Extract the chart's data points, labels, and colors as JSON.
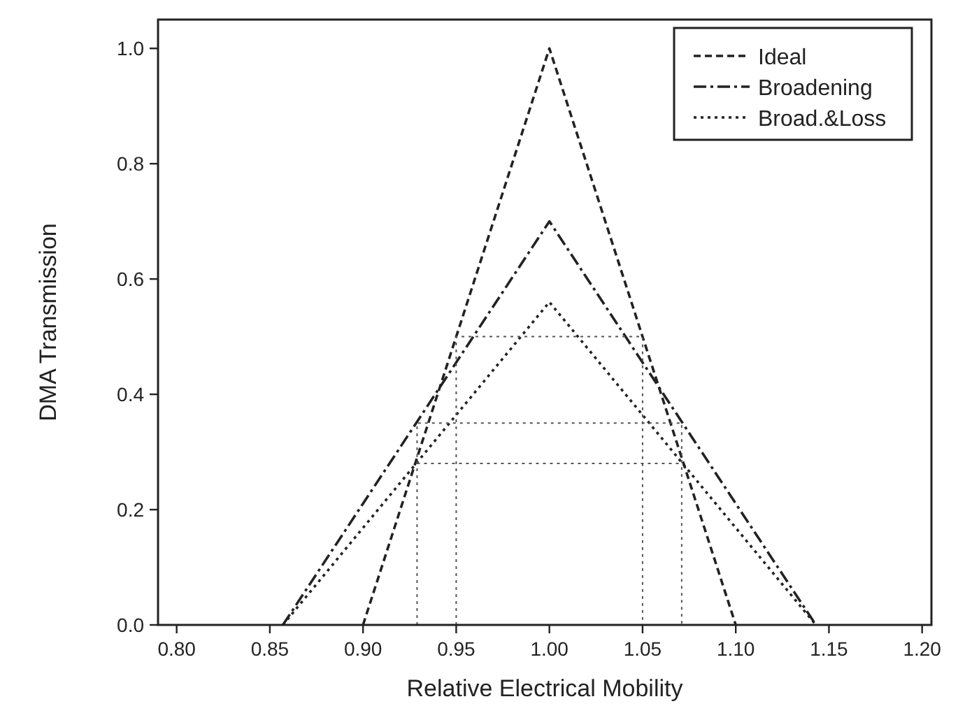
{
  "chart_data": {
    "type": "line",
    "xlabel": "Relative Electrical Mobility",
    "ylabel": "DMA Transmission",
    "xlim": [
      0.79,
      1.205
    ],
    "ylim": [
      0,
      1.05
    ],
    "xticks": [
      {
        "value": 0.8,
        "label": "0.80"
      },
      {
        "value": 0.85,
        "label": "0.85"
      },
      {
        "value": 0.9,
        "label": "0.90"
      },
      {
        "value": 0.95,
        "label": "0.95"
      },
      {
        "value": 1,
        "label": "1.00"
      },
      {
        "value": 1.05,
        "label": "1.05"
      },
      {
        "value": 1.1,
        "label": "1.10"
      },
      {
        "value": 1.15,
        "label": "1.15"
      },
      {
        "value": 1.2,
        "label": "1.20"
      }
    ],
    "yticks": [
      {
        "value": 0,
        "label": "0.0"
      },
      {
        "value": 0.2,
        "label": "0.2"
      },
      {
        "value": 0.4,
        "label": "0.4"
      },
      {
        "value": 0.6,
        "label": "0.6"
      },
      {
        "value": 0.8,
        "label": "0.8"
      },
      {
        "value": 1,
        "label": "1.0"
      }
    ],
    "legend": "top right",
    "grid": false,
    "marker": "none",
    "series": [
      {
        "name": "Ideal",
        "color": "#222222",
        "line_style": "dashed",
        "x": [
          0.9,
          1,
          1.1
        ],
        "values": [
          0,
          1,
          0
        ]
      },
      {
        "name": "Broadening",
        "color": "#222222",
        "line_style": "dashdot",
        "x": [
          0.857,
          1,
          1.143
        ],
        "values": [
          0,
          0.7,
          0
        ]
      },
      {
        "name": "Broad.&Loss",
        "color": "#222222",
        "line_style": "dotted",
        "x": [
          0.857,
          1,
          1.143
        ],
        "values": [
          0,
          0.56,
          0
        ]
      },
      {
        "color": "#555555",
        "line_style": "dotted",
        "x": [
          0.95,
          0.95,
          1.05,
          1.05
        ],
        "values": [
          0,
          0.5,
          0.5,
          0
        ]
      },
      {
        "color": "#555555",
        "line_style": "dotted",
        "x": [
          0.929,
          0.929,
          1.071,
          1.071
        ],
        "values": [
          0,
          0.35,
          0.35,
          0
        ]
      },
      {
        "color": "#555555",
        "line_style": "dotted",
        "x": [
          0.929,
          1.071
        ],
        "values": [
          0.28,
          0.28
        ]
      }
    ]
  }
}
